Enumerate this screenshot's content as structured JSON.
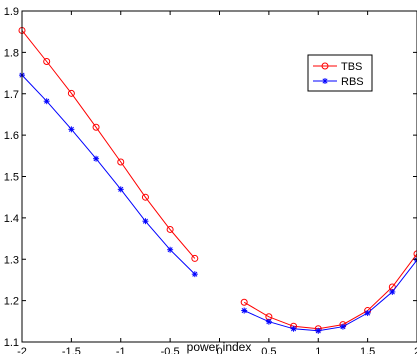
{
  "chart_data": {
    "type": "line",
    "xlabel": "power index",
    "ylabel": "",
    "xlim": [
      -2,
      2
    ],
    "ylim": [
      1.1,
      1.9
    ],
    "xticks": [
      "-2",
      "-1.5",
      "-1",
      "-0.5",
      "0",
      "0.5",
      "1",
      "1.5",
      "2"
    ],
    "yticks": [
      "1.1",
      "1.2",
      "1.3",
      "1.4",
      "1.5",
      "1.6",
      "1.7",
      "1.8",
      "1.9"
    ],
    "grid": false,
    "legend_position": "top-right",
    "series": [
      {
        "name": "TBS",
        "color": "#ff0000",
        "marker": "circle",
        "segments": [
          {
            "x": [
              -2,
              -1.75,
              -1.5,
              -1.25,
              -1,
              -0.75,
              -0.5,
              -0.25
            ],
            "y": [
              1.853,
              1.778,
              1.701,
              1.619,
              1.535,
              1.45,
              1.372,
              1.302
            ]
          },
          {
            "x": [
              0.25,
              0.5,
              0.75,
              1,
              1.25,
              1.5,
              1.75,
              2
            ],
            "y": [
              1.196,
              1.161,
              1.138,
              1.132,
              1.142,
              1.176,
              1.233,
              1.313
            ]
          }
        ]
      },
      {
        "name": "RBS",
        "color": "#0000ff",
        "marker": "star",
        "segments": [
          {
            "x": [
              -2,
              -1.75,
              -1.5,
              -1.25,
              -1,
              -0.75,
              -0.5,
              -0.25
            ],
            "y": [
              1.745,
              1.682,
              1.614,
              1.543,
              1.469,
              1.392,
              1.323,
              1.264
            ]
          },
          {
            "x": [
              0.25,
              0.5,
              0.75,
              1,
              1.25,
              1.5,
              1.75,
              2
            ],
            "y": [
              1.176,
              1.149,
              1.132,
              1.127,
              1.137,
              1.17,
              1.221,
              1.298
            ]
          }
        ]
      }
    ]
  }
}
